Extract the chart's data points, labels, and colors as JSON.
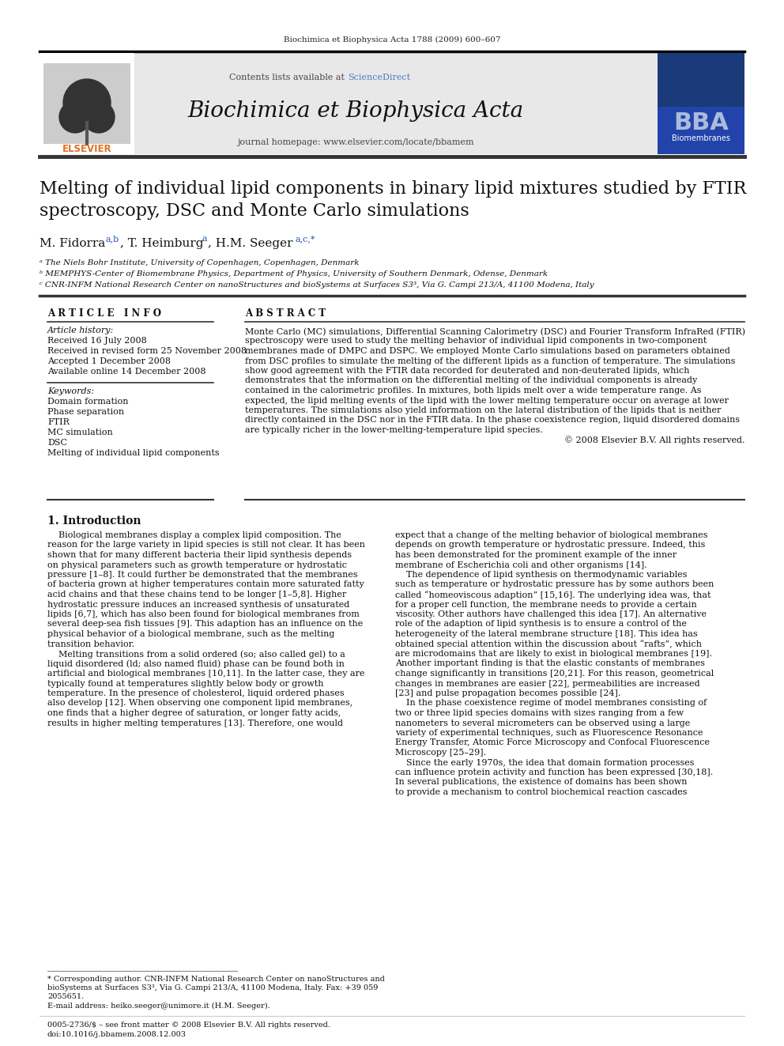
{
  "page_bg": "#ffffff",
  "top_journal_ref": "Biochimica et Biophysica Acta 1788 (2009) 600–607",
  "header_bg": "#e8e8e8",
  "header_content_text": "Contents lists available at ",
  "header_sciencedirect": "ScienceDirect",
  "header_sciencedirect_color": "#4a7fc1",
  "journal_title": "Biochimica et Biophysica Acta",
  "journal_homepage": "journal homepage: www.elsevier.com/locate/bbamem",
  "paper_title": "Melting of individual lipid components in binary lipid mixtures studied by FTIR\nspectroscopy, DSC and Monte Carlo simulations",
  "affil_a": "ᵃ The Niels Bohr Institute, University of Copenhagen, Copenhagen, Denmark",
  "affil_b": "ᵇ MEMPHYS-Center of Biomembrane Physics, Department of Physics, University of Southern Denmark, Odense, Denmark",
  "affil_c": "ᶜ CNR-INFM National Research Center on nanoStructures and bioSystems at Surfaces S3³, Via G. Campi 213/A, 41100 Modena, Italy",
  "article_info_header": "A R T I C L E   I N F O",
  "article_history_header": "Article history:",
  "article_history": "Received 16 July 2008\nReceived in revised form 25 November 2008\nAccepted 1 December 2008\nAvailable online 14 December 2008",
  "keywords_header": "Keywords:",
  "keywords": "Domain formation\nPhase separation\nFTIR\nMC simulation\nDSC\nMelting of individual lipid components",
  "abstract_header": "A B S T R A C T",
  "abstract_text": "Monte Carlo (MC) simulations, Differential Scanning Calorimetry (DSC) and Fourier Transform InfraRed (FTIR)\nspectroscopy were used to study the melting behavior of individual lipid components in two-component\nmembranes made of DMPC and DSPC. We employed Monte Carlo simulations based on parameters obtained\nfrom DSC profiles to simulate the melting of the different lipids as a function of temperature. The simulations\nshow good agreement with the FTIR data recorded for deuterated and non-deuterated lipids, which\ndemonstrates that the information on the differential melting of the individual components is already\ncontained in the calorimetric profiles. In mixtures, both lipids melt over a wide temperature range. As\nexpected, the lipid melting events of the lipid with the lower melting temperature occur on average at lower\ntemperatures. The simulations also yield information on the lateral distribution of the lipids that is neither\ndirectly contained in the DSC nor in the FTIR data. In the phase coexistence region, liquid disordered domains\nare typically richer in the lower-melting-temperature lipid species.\n© 2008 Elsevier B.V. All rights reserved.",
  "section1_title": "1. Introduction",
  "intro_col1": "    Biological membranes display a complex lipid composition. The\nreason for the large variety in lipid species is still not clear. It has been\nshown that for many different bacteria their lipid synthesis depends\non physical parameters such as growth temperature or hydrostatic\npressure [1–8]. It could further be demonstrated that the membranes\nof bacteria grown at higher temperatures contain more saturated fatty\nacid chains and that these chains tend to be longer [1–5,8]. Higher\nhydrostatic pressure induces an increased synthesis of unsaturated\nlipids [6,7], which has also been found for biological membranes from\nseveral deep-sea fish tissues [9]. This adaption has an influence on the\nphysical behavior of a biological membrane, such as the melting\ntransition behavior.\n    Melting transitions from a solid ordered (so; also called gel) to a\nliquid disordered (ld; also named fluid) phase can be found both in\nartificial and biological membranes [10,11]. In the latter case, they are\ntypically found at temperatures slightly below body or growth\ntemperature. In the presence of cholesterol, liquid ordered phases\nalso develop [12]. When observing one component lipid membranes,\none finds that a higher degree of saturation, or longer fatty acids,\nresults in higher melting temperatures [13]. Therefore, one would",
  "intro_col2": "expect that a change of the melting behavior of biological membranes\ndepends on growth temperature or hydrostatic pressure. Indeed, this\nhas been demonstrated for the prominent example of the inner\nmembrane of Escherichia coli and other organisms [14].\n    The dependence of lipid synthesis on thermodynamic variables\nsuch as temperature or hydrostatic pressure has by some authors been\ncalled “homeoviscous adaption” [15,16]. The underlying idea was, that\nfor a proper cell function, the membrane needs to provide a certain\nviscosity. Other authors have challenged this idea [17]. An alternative\nrole of the adaption of lipid synthesis is to ensure a control of the\nheterogeneity of the lateral membrane structure [18]. This idea has\nobtained special attention within the discussion about “rafts”, which\nare microdomains that are likely to exist in biological membranes [19].\nAnother important finding is that the elastic constants of membranes\nchange significantly in transitions [20,21]. For this reason, geometrical\nchanges in membranes are easier [22], permeabilities are increased\n[23] and pulse propagation becomes possible [24].\n    In the phase coexistence regime of model membranes consisting of\ntwo or three lipid species domains with sizes ranging from a few\nnanometers to several micrometers can be observed using a large\nvariety of experimental techniques, such as Fluorescence Resonance\nEnergy Transfer, Atomic Force Microscopy and Confocal Fluorescence\nMicroscopy [25–29].\n    Since the early 1970s, the idea that domain formation processes\ncan influence protein activity and function has been expressed [30,18].\nIn several publications, the existence of domains has been shown\nto provide a mechanism to control biochemical reaction cascades",
  "footnote_star": "* Corresponding author. CNR-INFM National Research Center on nanoStructures and\nbioSystems at Surfaces S3³, Via G. Campi 213/A, 41100 Modena, Italy. Fax: +39 059\n2055651.",
  "footnote_email": "E-mail address: heiko.seeger@unimore.it (H.M. Seeger).",
  "bottom_line1": "0005-2736/$ – see front matter © 2008 Elsevier B.V. All rights reserved.",
  "bottom_line2": "doi:10.1016/j.bbamem.2008.12.003"
}
